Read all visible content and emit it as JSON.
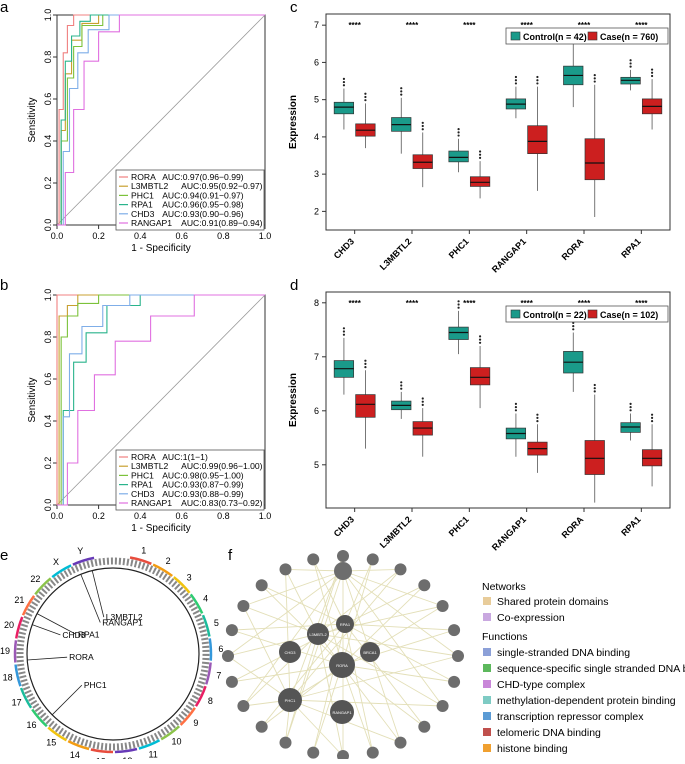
{
  "panel_labels": {
    "a": "a",
    "b": "b",
    "c": "c",
    "d": "d",
    "e": "e",
    "f": "f"
  },
  "colors": {
    "control": "#1a9a8a",
    "case": "#cc1f1f",
    "roc": [
      "#f08080",
      "#c8a030",
      "#7cc23a",
      "#2ab48c",
      "#7faee8",
      "#e070e0"
    ],
    "legend_dots": [
      "#e8cc9a",
      "#c9a8e0",
      "#8ca0d8",
      "#5cb85c",
      "#c987d9",
      "#7ecbc4",
      "#5b9bd5",
      "#c0504d",
      "#f0a030"
    ],
    "edge": "#e3dfb8",
    "node": "#555555"
  },
  "chart_data": [
    {
      "panel": "a",
      "type": "line",
      "title": "",
      "xlabel": "1 - Specificity",
      "ylabel": "Sensitivity",
      "xlim": [
        0,
        1
      ],
      "ylim": [
        0,
        1
      ],
      "xticks": [
        "0.0",
        "0.2",
        "0.4",
        "0.6",
        "0.8",
        "1.0"
      ],
      "yticks": [
        "0.0",
        "0.2",
        "0.4",
        "0.6",
        "0.8",
        "1.0"
      ],
      "series": [
        {
          "name": "RORA",
          "auc": "AUC:0.97(0.96−0.99)",
          "x": [
            0,
            0.01,
            0.03,
            0.05,
            0.08,
            1
          ],
          "y": [
            0,
            0.55,
            0.82,
            0.95,
            1,
            1
          ]
        },
        {
          "name": "L3MBTL2",
          "auc": "AUC:0.95(0.92−0.97)",
          "x": [
            0,
            0.02,
            0.04,
            0.07,
            0.12,
            0.2,
            1
          ],
          "y": [
            0,
            0.45,
            0.72,
            0.88,
            0.96,
            1,
            1
          ]
        },
        {
          "name": "PHC1",
          "auc": "AUC:0.94(0.91−0.97)",
          "x": [
            0,
            0.02,
            0.05,
            0.08,
            0.12,
            0.22,
            1
          ],
          "y": [
            0,
            0.4,
            0.7,
            0.85,
            0.95,
            1,
            1
          ]
        },
        {
          "name": "RPA1",
          "auc": "AUC:0.96(0.95−0.98)",
          "x": [
            0,
            0.02,
            0.04,
            0.07,
            0.11,
            0.16,
            1
          ],
          "y": [
            0,
            0.5,
            0.78,
            0.9,
            0.97,
            1,
            1
          ]
        },
        {
          "name": "CHD3",
          "auc": "AUC:0.93(0.90−0.96)",
          "x": [
            0,
            0.03,
            0.06,
            0.1,
            0.15,
            0.25,
            1
          ],
          "y": [
            0,
            0.35,
            0.65,
            0.82,
            0.93,
            1,
            1
          ]
        },
        {
          "name": "RANGAP1",
          "auc": "AUC:0.91(0.89−0.94)",
          "x": [
            0,
            0.04,
            0.08,
            0.13,
            0.2,
            0.3,
            1
          ],
          "y": [
            0,
            0.25,
            0.55,
            0.78,
            0.92,
            1,
            1
          ]
        }
      ]
    },
    {
      "panel": "b",
      "type": "line",
      "title": "",
      "xlabel": "1 - Specificity",
      "ylabel": "Sensitivity",
      "xlim": [
        0,
        1
      ],
      "ylim": [
        0,
        1
      ],
      "xticks": [
        "0.0",
        "0.2",
        "0.4",
        "0.6",
        "0.8",
        "1.0"
      ],
      "yticks": [
        "0.0",
        "0.2",
        "0.4",
        "0.6",
        "0.8",
        "1.0"
      ],
      "series": [
        {
          "name": "RORA",
          "auc": "AUC:1(1−1)",
          "x": [
            0,
            0,
            1
          ],
          "y": [
            0,
            1,
            1
          ]
        },
        {
          "name": "L3MBTL2",
          "auc": "AUC:0.99(0.96−1.00)",
          "x": [
            0,
            0.01,
            0.05,
            0.1,
            1
          ],
          "y": [
            0,
            0.9,
            0.95,
            1,
            1
          ]
        },
        {
          "name": "PHC1",
          "auc": "AUC:0.98(0.95−1.00)",
          "x": [
            0,
            0.02,
            0.05,
            0.1,
            0.2,
            1
          ],
          "y": [
            0,
            0.8,
            0.9,
            0.96,
            1,
            1
          ]
        },
        {
          "name": "RPA1",
          "auc": "AUC:0.93(0.87−0.99)",
          "x": [
            0,
            0.03,
            0.08,
            0.14,
            0.24,
            0.4,
            1
          ],
          "y": [
            0,
            0.45,
            0.68,
            0.82,
            0.95,
            1,
            1
          ]
        },
        {
          "name": "CHD3",
          "auc": "AUC:0.93(0.88−0.99)",
          "x": [
            0,
            0.03,
            0.06,
            0.12,
            0.22,
            0.35,
            1
          ],
          "y": [
            0,
            0.42,
            0.72,
            0.85,
            0.95,
            1,
            1
          ]
        },
        {
          "name": "RANGAP1",
          "auc": "AUC:0.83(0.73−0.92)",
          "x": [
            0,
            0.05,
            0.1,
            0.18,
            0.28,
            0.45,
            0.66,
            1
          ],
          "y": [
            0,
            0.2,
            0.45,
            0.62,
            0.78,
            0.9,
            1,
            1
          ]
        }
      ]
    },
    {
      "panel": "c",
      "type": "box",
      "title": "",
      "xlabel": "",
      "ylabel": "Expression",
      "ylim": [
        1.5,
        7.3
      ],
      "yticks": [
        2,
        3,
        4,
        5,
        6,
        7
      ],
      "categories": [
        "CHD3",
        "L3MBTL2",
        "PHC1",
        "RANGAP1",
        "RORA",
        "RPA1"
      ],
      "significance": [
        "****",
        "****",
        "****",
        "****",
        "****",
        "****"
      ],
      "legend": {
        "control": "Control(n = 42)",
        "case": "Case(n = 760)"
      },
      "series": [
        {
          "name": "Control",
          "boxes": [
            [
              4.2,
              4.62,
              4.8,
              4.93,
              5.3
            ],
            [
              3.55,
              4.15,
              4.33,
              4.52,
              5.05
            ],
            [
              3.05,
              3.33,
              3.45,
              3.62,
              3.95
            ],
            [
              4.5,
              4.75,
              4.88,
              5.02,
              5.35
            ],
            [
              4.8,
              5.4,
              5.65,
              5.9,
              6.55
            ],
            [
              5.25,
              5.42,
              5.52,
              5.6,
              5.8
            ]
          ]
        },
        {
          "name": "Case",
          "boxes": [
            [
              3.7,
              4.02,
              4.18,
              4.35,
              4.9
            ],
            [
              2.65,
              3.15,
              3.32,
              3.52,
              4.12
            ],
            [
              2.35,
              2.67,
              2.78,
              2.93,
              3.35
            ],
            [
              2.55,
              3.55,
              3.88,
              4.3,
              5.35
            ],
            [
              1.85,
              2.85,
              3.3,
              3.95,
              5.4
            ],
            [
              4.2,
              4.62,
              4.82,
              5.02,
              5.55
            ]
          ]
        }
      ]
    },
    {
      "panel": "d",
      "type": "box",
      "title": "",
      "xlabel": "",
      "ylabel": "Expression",
      "ylim": [
        4.2,
        8.2
      ],
      "yticks": [
        5,
        6,
        7,
        8
      ],
      "categories": [
        "CHD3",
        "L3MBTL2",
        "PHC1",
        "RANGAP1",
        "RORA",
        "RPA1"
      ],
      "significance": [
        "****",
        "****",
        "****",
        "****",
        "****",
        "****"
      ],
      "legend": {
        "control": "Control(n = 22)",
        "case": "Case(n = 102)"
      },
      "series": [
        {
          "name": "Control",
          "boxes": [
            [
              6.3,
              6.62,
              6.78,
              6.93,
              7.35
            ],
            [
              5.85,
              6.02,
              6.1,
              6.18,
              6.35
            ],
            [
              7.05,
              7.32,
              7.45,
              7.55,
              7.85
            ],
            [
              5.15,
              5.48,
              5.58,
              5.68,
              5.95
            ],
            [
              6.35,
              6.7,
              6.9,
              7.1,
              7.45
            ],
            [
              5.45,
              5.6,
              5.7,
              5.78,
              5.95
            ]
          ]
        },
        {
          "name": "Case",
          "boxes": [
            [
              5.3,
              5.88,
              6.12,
              6.3,
              6.75
            ],
            [
              5.15,
              5.55,
              5.68,
              5.8,
              6.05
            ],
            [
              6.05,
              6.48,
              6.62,
              6.8,
              7.2
            ],
            [
              4.85,
              5.18,
              5.3,
              5.42,
              5.75
            ],
            [
              4.3,
              4.82,
              5.12,
              5.45,
              6.3
            ],
            [
              4.6,
              4.98,
              5.12,
              5.28,
              5.75
            ]
          ]
        }
      ]
    }
  ],
  "panel_e": {
    "chromosomes": [
      "1",
      "2",
      "3",
      "4",
      "5",
      "6",
      "7",
      "8",
      "9",
      "10",
      "11",
      "12",
      "13",
      "14",
      "15",
      "16",
      "17",
      "18",
      "19",
      "20",
      "21",
      "22",
      "X",
      "Y"
    ],
    "genes": [
      "RANGAP1",
      "L3MBTL2",
      "CHD3",
      "RPA1",
      "RORA",
      "PHC1"
    ]
  },
  "panel_f": {
    "legend": {
      "networks_title": "Networks",
      "networks": [
        "Shared protein domains",
        "Co-expression"
      ],
      "functions_title": "Functions",
      "functions": [
        "single-stranded DNA binding",
        "sequence-specific single stranded DNA binding",
        "CHD-type complex",
        "methylation-dependent protein binding",
        "transcription repressor complex",
        "telomeric DNA binding",
        "histone binding"
      ]
    },
    "core_nodes": [
      "L3MBTL2",
      "RPA1",
      "CHD3",
      "RORA",
      "PHC1",
      "RANGAP1",
      "BRCA1"
    ]
  }
}
